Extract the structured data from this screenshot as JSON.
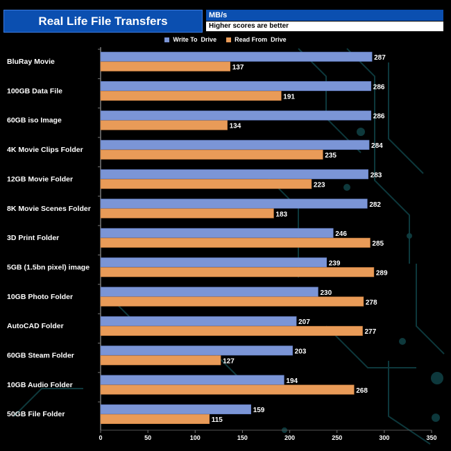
{
  "header": {
    "title": "Real Life File Transfers",
    "unit": "MB/s",
    "note": "Higher scores are better"
  },
  "colors": {
    "write": "#7b95d6",
    "read": "#e99b58",
    "title_bg": "#0b4fb0"
  },
  "chart_data": {
    "type": "bar",
    "orientation": "horizontal",
    "title": "Real Life File Transfers",
    "xlabel": "MB/s",
    "xlim": [
      0,
      350
    ],
    "xticks": [
      0,
      50,
      100,
      150,
      200,
      250,
      300,
      350
    ],
    "legend_position": "top-center",
    "categories": [
      "BluRay Movie",
      "100GB Data File",
      "60GB iso Image",
      "4K Movie Clips Folder",
      "12GB Movie Folder",
      "8K Movie Scenes Folder",
      "3D Print Folder",
      "5GB (1.5bn pixel) image",
      "10GB Photo Folder",
      "AutoCAD Folder",
      "60GB Steam Folder",
      "10GB Audio Folder",
      "50GB File Folder"
    ],
    "series": [
      {
        "name": "Write To  Drive",
        "values": [
          287,
          286,
          286,
          284,
          283,
          282,
          246,
          239,
          230,
          207,
          203,
          194,
          159
        ]
      },
      {
        "name": "Read From  Drive",
        "values": [
          137,
          191,
          134,
          235,
          223,
          183,
          285,
          289,
          278,
          277,
          127,
          268,
          115
        ]
      }
    ]
  }
}
